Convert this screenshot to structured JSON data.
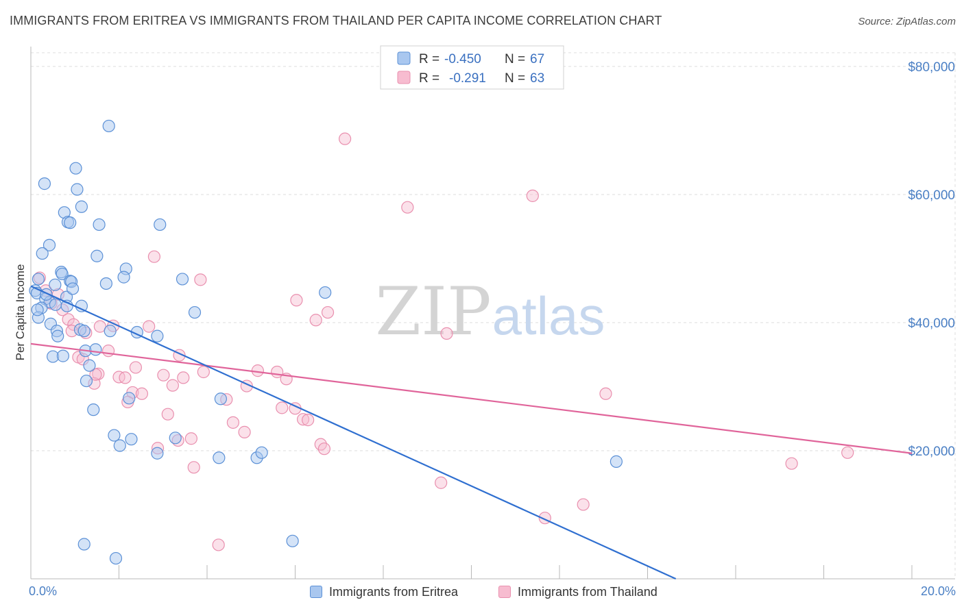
{
  "title": "IMMIGRANTS FROM ERITREA VS IMMIGRANTS FROM THAILAND PER CAPITA INCOME CORRELATION CHART",
  "source": "Source: ZipAtlas.com",
  "watermark": {
    "zip": "ZIP",
    "atlas": "atlas"
  },
  "legend_box": {
    "rows": [
      {
        "r_label": "R =",
        "r_value": "-0.450",
        "n_label": "N =",
        "n_value": "67"
      },
      {
        "r_label": "R =",
        "r_value": "-0.291",
        "n_label": "N =",
        "n_value": "63"
      }
    ]
  },
  "bottom_legend": {
    "series1": "Immigrants from Eritrea",
    "series2": "Immigrants from Thailand"
  },
  "colors": {
    "eritrea_fill": "#a9c7ef",
    "eritrea_stroke": "#5b90d6",
    "eritrea_line": "#2f6fd0",
    "thailand_fill": "#f7bcd0",
    "thailand_stroke": "#e98fae",
    "thailand_line": "#e0649a",
    "grid": "#dcdcdc",
    "tick_text": "#4a7fc4"
  },
  "chart_data": {
    "type": "scatter",
    "title": "IMMIGRANTS FROM ERITREA VS IMMIGRANTS FROM THAILAND PER CAPITA INCOME CORRELATION CHART",
    "xlabel": "",
    "ylabel": "Per Capita Income",
    "xlim": [
      0,
      20
    ],
    "ylim": [
      0,
      80000
    ],
    "x_tick_labels": [
      "0.0%",
      "20.0%"
    ],
    "y_ticks": [
      20000,
      40000,
      60000,
      80000
    ],
    "y_tick_labels": [
      "$20,000",
      "$40,000",
      "$60,000",
      "$80,000"
    ],
    "grid": true,
    "legend_position": "top-center",
    "series": [
      {
        "name": "Immigrants from Eritrea",
        "r": -0.45,
        "n": 67,
        "trend": {
          "x": [
            0.0,
            14.64
          ],
          "y": [
            45700,
            0
          ]
        },
        "points": [
          [
            1.77,
            70700
          ],
          [
            0.31,
            61700
          ],
          [
            1.02,
            64100
          ],
          [
            1.05,
            60800
          ],
          [
            1.15,
            58100
          ],
          [
            0.76,
            57200
          ],
          [
            0.84,
            55700
          ],
          [
            0.89,
            55600
          ],
          [
            1.55,
            55300
          ],
          [
            2.93,
            55300
          ],
          [
            0.42,
            52100
          ],
          [
            0.26,
            50800
          ],
          [
            1.5,
            50400
          ],
          [
            0.69,
            47900
          ],
          [
            0.71,
            47600
          ],
          [
            2.16,
            48400
          ],
          [
            2.11,
            47100
          ],
          [
            0.89,
            46500
          ],
          [
            0.92,
            46400
          ],
          [
            1.71,
            46100
          ],
          [
            0.55,
            45900
          ],
          [
            0.17,
            46800
          ],
          [
            3.44,
            46800
          ],
          [
            6.68,
            44700
          ],
          [
            0.1,
            45000
          ],
          [
            0.14,
            44600
          ],
          [
            0.33,
            43700
          ],
          [
            0.43,
            43200
          ],
          [
            0.56,
            42800
          ],
          [
            0.24,
            42300
          ],
          [
            0.81,
            44000
          ],
          [
            0.82,
            42600
          ],
          [
            1.15,
            42600
          ],
          [
            3.72,
            41600
          ],
          [
            0.17,
            40800
          ],
          [
            0.45,
            39800
          ],
          [
            0.59,
            38700
          ],
          [
            1.12,
            38900
          ],
          [
            1.21,
            38700
          ],
          [
            1.8,
            38700
          ],
          [
            2.41,
            38500
          ],
          [
            2.87,
            37900
          ],
          [
            0.61,
            37900
          ],
          [
            1.24,
            35600
          ],
          [
            1.47,
            35800
          ],
          [
            0.5,
            34700
          ],
          [
            0.73,
            34800
          ],
          [
            1.33,
            33300
          ],
          [
            1.26,
            30900
          ],
          [
            2.23,
            28200
          ],
          [
            4.31,
            28100
          ],
          [
            1.42,
            26400
          ],
          [
            1.89,
            22400
          ],
          [
            2.28,
            21800
          ],
          [
            2.02,
            20800
          ],
          [
            3.28,
            22000
          ],
          [
            2.87,
            19600
          ],
          [
            4.27,
            18900
          ],
          [
            5.13,
            18900
          ],
          [
            5.24,
            19700
          ],
          [
            13.29,
            18300
          ],
          [
            1.21,
            5400
          ],
          [
            1.93,
            3200
          ],
          [
            5.94,
            5900
          ],
          [
            0.15,
            42000
          ],
          [
            0.35,
            44400
          ],
          [
            0.95,
            45300
          ]
        ]
      },
      {
        "name": "Immigrants from Thailand",
        "r": -0.291,
        "n": 63,
        "trend": {
          "x": [
            0.0,
            20.0
          ],
          "y": [
            36700,
            19600
          ]
        },
        "points": [
          [
            7.13,
            68700
          ],
          [
            11.39,
            59800
          ],
          [
            8.55,
            58000
          ],
          [
            2.8,
            50300
          ],
          [
            0.2,
            47000
          ],
          [
            3.85,
            46700
          ],
          [
            0.34,
            45000
          ],
          [
            0.62,
            44400
          ],
          [
            6.03,
            43500
          ],
          [
            0.46,
            43000
          ],
          [
            0.72,
            42000
          ],
          [
            6.74,
            41600
          ],
          [
            0.85,
            40500
          ],
          [
            6.47,
            40400
          ],
          [
            0.97,
            39700
          ],
          [
            1.57,
            39400
          ],
          [
            1.87,
            39500
          ],
          [
            2.68,
            39400
          ],
          [
            0.93,
            38700
          ],
          [
            1.25,
            38400
          ],
          [
            9.44,
            38300
          ],
          [
            1.76,
            35600
          ],
          [
            3.37,
            34900
          ],
          [
            1.08,
            34600
          ],
          [
            1.18,
            34300
          ],
          [
            2.38,
            33000
          ],
          [
            5.15,
            32500
          ],
          [
            5.59,
            32300
          ],
          [
            3.92,
            32300
          ],
          [
            1.53,
            32000
          ],
          [
            2.0,
            31500
          ],
          [
            2.14,
            31400
          ],
          [
            3.01,
            31800
          ],
          [
            3.46,
            31400
          ],
          [
            5.8,
            31200
          ],
          [
            4.9,
            30100
          ],
          [
            1.44,
            30500
          ],
          [
            3.22,
            30200
          ],
          [
            2.31,
            29100
          ],
          [
            2.52,
            28900
          ],
          [
            13.05,
            28900
          ],
          [
            4.44,
            28000
          ],
          [
            2.2,
            27600
          ],
          [
            5.7,
            26700
          ],
          [
            6.0,
            26600
          ],
          [
            3.11,
            25700
          ],
          [
            6.18,
            24900
          ],
          [
            6.29,
            24800
          ],
          [
            4.59,
            24400
          ],
          [
            4.85,
            22900
          ],
          [
            3.64,
            21900
          ],
          [
            3.34,
            21600
          ],
          [
            6.58,
            21000
          ],
          [
            6.66,
            20300
          ],
          [
            2.88,
            20400
          ],
          [
            18.54,
            19700
          ],
          [
            17.27,
            18000
          ],
          [
            3.7,
            17400
          ],
          [
            9.31,
            15000
          ],
          [
            12.54,
            11600
          ],
          [
            11.67,
            9500
          ],
          [
            4.26,
            5300
          ],
          [
            1.47,
            31900
          ]
        ]
      }
    ]
  }
}
